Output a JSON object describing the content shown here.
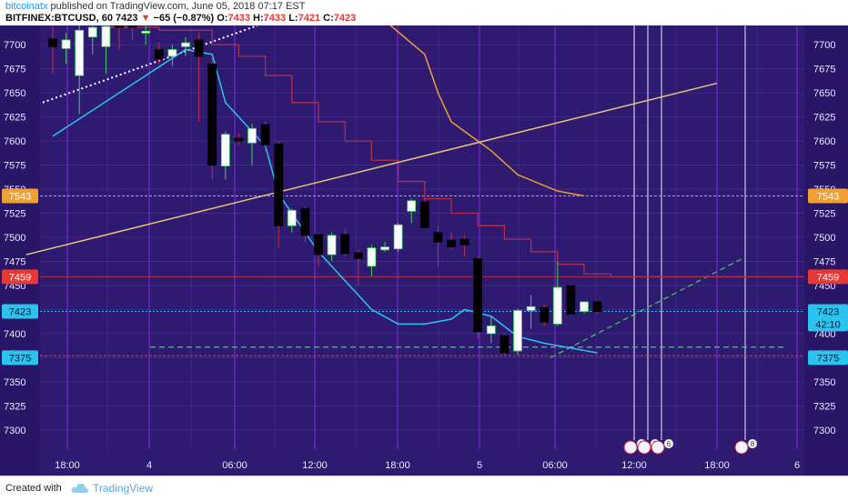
{
  "header": {
    "author": "bitcoinatx",
    "published_text": "published on TradingView.com, June 05, 2018 07:17 EST",
    "symbol": "BITFINEX:BTCUSD, 60",
    "last_price": "7423",
    "change": "−65 (−0.87%)",
    "ohlc": {
      "o_label": "O:",
      "o": "7433",
      "h_label": "H:",
      "h": "7433",
      "l_label": "L:",
      "l": "7421",
      "c_label": "C:",
      "c": "7423"
    }
  },
  "footer": {
    "created_with": "Created with",
    "brand": "TradingView"
  },
  "colors": {
    "background": "#2e1a70",
    "grid": "#5a3fb0",
    "session_line": "#8a2be2",
    "up_candle": "#ffffff",
    "down_candle": "#000000",
    "cyan_line": "#29c5ee",
    "red_step": "#b0304a",
    "orange_line": "#f0a030",
    "tan_line": "#e6c47a"
  },
  "chart_data": {
    "type": "candlestick",
    "y_axis": {
      "min": 7280,
      "max": 7720,
      "ticks": [
        "7700",
        "7675",
        "7650",
        "7625",
        "7600",
        "7575",
        "7550",
        "7525",
        "7500",
        "7475",
        "7450",
        "7425",
        "7400",
        "7375",
        "7350",
        "7325",
        "7300"
      ]
    },
    "x_axis": {
      "ticks": [
        "18:00",
        "4",
        "06:00",
        "12:00",
        "18:00",
        "5",
        "06:00",
        "12:00",
        "18:00",
        "6"
      ]
    },
    "price_labels": [
      {
        "value": "7543",
        "color": "#f0a030"
      },
      {
        "value": "7459",
        "color": "#e53935"
      },
      {
        "value": "7423",
        "color": "#29c5ee"
      },
      {
        "value": "42:10",
        "color": "#29c5ee"
      },
      {
        "value": "7375",
        "color": "#29c5ee"
      }
    ],
    "candles": [
      {
        "o": 7706,
        "h": 7720,
        "l": 7670,
        "c": 7698
      },
      {
        "o": 7696,
        "h": 7712,
        "l": 7680,
        "c": 7705
      },
      {
        "o": 7668,
        "h": 7720,
        "l": 7628,
        "c": 7715
      },
      {
        "o": 7708,
        "h": 7722,
        "l": 7690,
        "c": 7718
      },
      {
        "o": 7698,
        "h": 7722,
        "l": 7670,
        "c": 7719
      },
      {
        "o": 7720,
        "h": 7725,
        "l": 7695,
        "c": 7718
      },
      {
        "o": 7722,
        "h": 7728,
        "l": 7705,
        "c": 7718
      },
      {
        "o": 7712,
        "h": 7722,
        "l": 7700,
        "c": 7714
      },
      {
        "o": 7695,
        "h": 7702,
        "l": 7680,
        "c": 7685
      },
      {
        "o": 7688,
        "h": 7700,
        "l": 7678,
        "c": 7695
      },
      {
        "o": 7698,
        "h": 7708,
        "l": 7688,
        "c": 7702
      },
      {
        "o": 7705,
        "h": 7712,
        "l": 7620,
        "c": 7688
      },
      {
        "o": 7680,
        "h": 7688,
        "l": 7560,
        "c": 7575
      },
      {
        "o": 7574,
        "h": 7610,
        "l": 7560,
        "c": 7607
      },
      {
        "o": 7603,
        "h": 7608,
        "l": 7596,
        "c": 7600
      },
      {
        "o": 7598,
        "h": 7618,
        "l": 7575,
        "c": 7613
      },
      {
        "o": 7617,
        "h": 7620,
        "l": 7590,
        "c": 7596
      },
      {
        "o": 7597,
        "h": 7600,
        "l": 7490,
        "c": 7512
      },
      {
        "o": 7512,
        "h": 7530,
        "l": 7505,
        "c": 7528
      },
      {
        "o": 7530,
        "h": 7532,
        "l": 7495,
        "c": 7502
      },
      {
        "o": 7503,
        "h": 7505,
        "l": 7470,
        "c": 7482
      },
      {
        "o": 7482,
        "h": 7505,
        "l": 7475,
        "c": 7502
      },
      {
        "o": 7503,
        "h": 7508,
        "l": 7480,
        "c": 7483
      },
      {
        "o": 7484,
        "h": 7487,
        "l": 7450,
        "c": 7478
      },
      {
        "o": 7470,
        "h": 7492,
        "l": 7460,
        "c": 7489
      },
      {
        "o": 7487,
        "h": 7495,
        "l": 7485,
        "c": 7490
      },
      {
        "o": 7488,
        "h": 7515,
        "l": 7485,
        "c": 7513
      },
      {
        "o": 7527,
        "h": 7540,
        "l": 7515,
        "c": 7538
      },
      {
        "o": 7537,
        "h": 7540,
        "l": 7510,
        "c": 7510
      },
      {
        "o": 7505,
        "h": 7512,
        "l": 7470,
        "c": 7495
      },
      {
        "o": 7497,
        "h": 7505,
        "l": 7488,
        "c": 7490
      },
      {
        "o": 7498,
        "h": 7502,
        "l": 7480,
        "c": 7492
      },
      {
        "o": 7478,
        "h": 7480,
        "l": 7395,
        "c": 7402
      },
      {
        "o": 7400,
        "h": 7418,
        "l": 7390,
        "c": 7408
      },
      {
        "o": 7398,
        "h": 7400,
        "l": 7378,
        "c": 7380
      },
      {
        "o": 7382,
        "h": 7426,
        "l": 7378,
        "c": 7424
      },
      {
        "o": 7424,
        "h": 7440,
        "l": 7405,
        "c": 7428
      },
      {
        "o": 7427,
        "h": 7430,
        "l": 7408,
        "c": 7412
      },
      {
        "o": 7410,
        "h": 7475,
        "l": 7408,
        "c": 7448
      },
      {
        "o": 7450,
        "h": 7452,
        "l": 7418,
        "c": 7420
      },
      {
        "o": 7423,
        "h": 7433,
        "l": 7421,
        "c": 7433
      },
      {
        "o": 7433,
        "h": 7433,
        "l": 7421,
        "c": 7423
      }
    ],
    "series": [
      {
        "name": "",
        "color": "#29c5ee",
        "points": [
          [
            0,
            7605
          ],
          [
            5,
            7650
          ],
          [
            10,
            7695
          ],
          [
            12,
            7690
          ],
          [
            13,
            7640
          ],
          [
            16,
            7595
          ],
          [
            17,
            7545
          ],
          [
            20,
            7485
          ],
          [
            24,
            7425
          ],
          [
            26,
            7410
          ],
          [
            28,
            7410
          ],
          [
            30,
            7415
          ],
          [
            31,
            7425
          ],
          [
            33,
            7418
          ],
          [
            35,
            7397
          ],
          [
            37,
            7390
          ],
          [
            39,
            7385
          ],
          [
            41,
            7380
          ]
        ]
      },
      {
        "name": "",
        "color": "#f0a030",
        "points": [
          [
            25,
            7725
          ],
          [
            28,
            7690
          ],
          [
            29,
            7650
          ],
          [
            30,
            7620
          ],
          [
            31,
            7610
          ],
          [
            33,
            7590
          ],
          [
            35,
            7565
          ],
          [
            38,
            7548
          ],
          [
            40,
            7543
          ]
        ]
      },
      {
        "name": "",
        "color": "#e6c47a",
        "points": [
          [
            -2,
            7482
          ],
          [
            50,
            7660
          ]
        ]
      }
    ],
    "red_step": [
      [
        4,
        7718
      ],
      [
        8,
        7715
      ],
      [
        12,
        7700
      ],
      [
        14,
        7688
      ],
      [
        16,
        7668
      ],
      [
        18,
        7640
      ],
      [
        20,
        7620
      ],
      [
        22,
        7600
      ],
      [
        24,
        7580
      ],
      [
        26,
        7558
      ],
      [
        28,
        7540
      ],
      [
        30,
        7525
      ],
      [
        32,
        7512
      ],
      [
        34,
        7498
      ],
      [
        36,
        7485
      ],
      [
        38,
        7472
      ],
      [
        40,
        7462
      ],
      [
        42,
        7459
      ]
    ]
  }
}
